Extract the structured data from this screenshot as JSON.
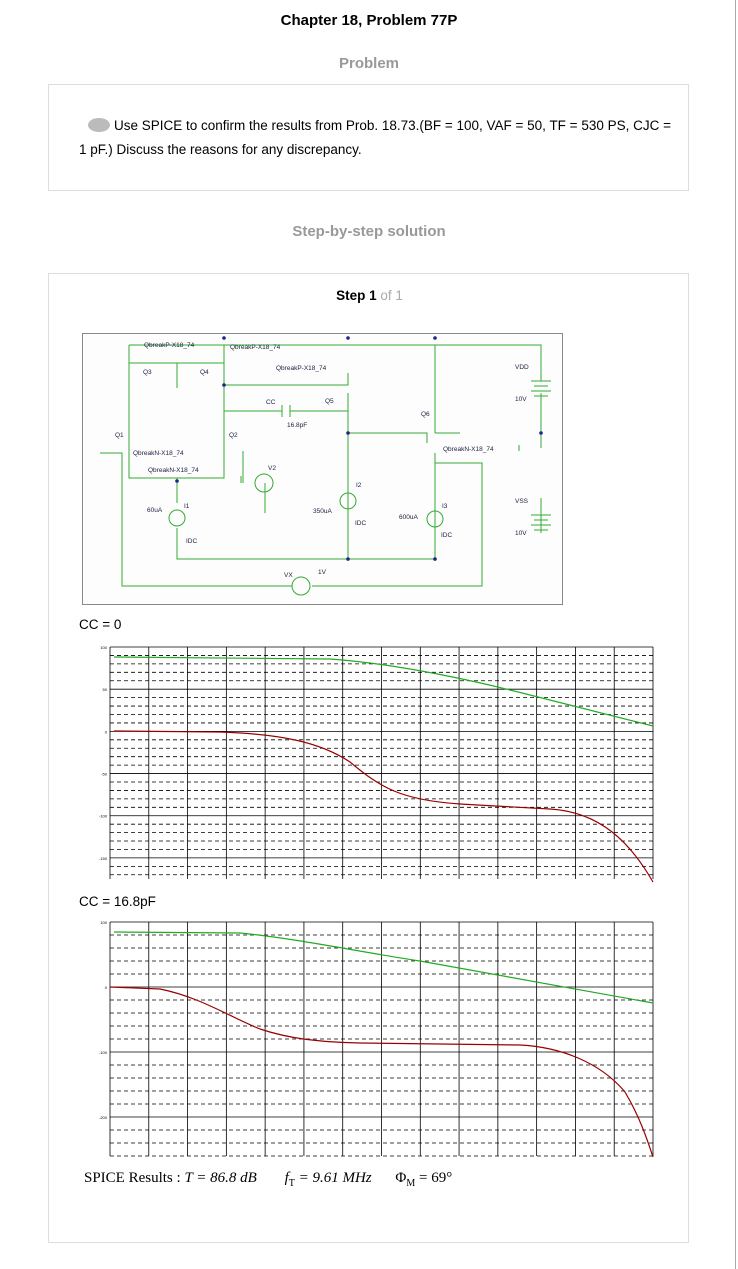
{
  "header": {
    "title": "Chapter 18, Problem 77P"
  },
  "problem": {
    "heading": "Problem",
    "text": "Use SPICE to confirm the results from Prob. 18.73.(BF = 100, VAF = 50, TF = 530 PS, CJC = 1 pF.) Discuss the reasons for any discrepancy."
  },
  "solution": {
    "heading": "Step-by-step solution",
    "step": "Step 1",
    "of": "of 1"
  },
  "circuit": {
    "labels": [
      "QbreakP-X18_74",
      "QbreakP-X18_74",
      "Q3",
      "Q4",
      "QbreakP-X18_74",
      "VDD",
      "10V",
      "CC",
      "Q5",
      "16.8pF",
      "Q6",
      "Q1",
      "Q2",
      "V2",
      "QbreakN-X18_74",
      "QbreakN-X18_74",
      "QbreakN-X18_74",
      "I2",
      "60uA",
      "I1",
      "350uA",
      "IDC",
      "600uA",
      "I3",
      "IDC",
      "VSS",
      "10V",
      "IDC",
      "1V",
      "VX"
    ]
  },
  "plots": [
    {
      "caption": "CC = 0",
      "yticks": [
        "100",
        "50",
        "0",
        "-50",
        "-100",
        "-150"
      ]
    },
    {
      "caption": "CC = 16.8pF",
      "yticks": [
        "100",
        "0",
        "-100",
        "-200"
      ]
    }
  ],
  "results": {
    "label": "SPICE Results",
    "sep": ":",
    "gain": "T = 86.8 dB",
    "ft_symbol": "f",
    "ft_sub": "T",
    "ft_rest": "= 9.61 MHz",
    "pm_symbol": "Φ",
    "pm_sub": "M",
    "pm_rest": "= 69°"
  }
}
